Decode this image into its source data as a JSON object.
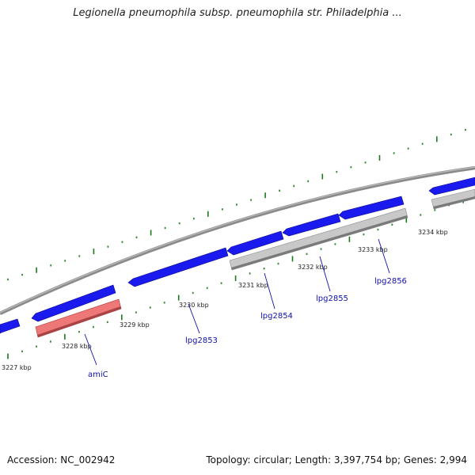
{
  "title": "Legionella pneumophila subsp. pneumophila str. Philadelphia ...",
  "footer": {
    "accession": "Accession: NC_002942",
    "summary": "Topology: circular; Length: 3,397,754 bp; Genes: 2,994"
  },
  "colors": {
    "forward_gene": "#1a1aee",
    "reverse_gene_rna": "#ee7777",
    "reverse_gene_other": "#c8c8c8",
    "backbone": "#8a8a8a",
    "tick_major": "#1a7a1a",
    "tick_minor": "#2e8b2e",
    "label_text": "#1010aa"
  },
  "scale": {
    "ticks": [
      "3227 kbp",
      "3228 kbp",
      "3229 kbp",
      "3230 kbp",
      "3231 kbp",
      "3232 kbp",
      "3233 kbp",
      "3234 kbp"
    ]
  },
  "genes": [
    {
      "label": "amiC",
      "strand": "reverse",
      "color_key": "reverse_gene_rna"
    },
    {
      "label": "lpg2853",
      "strand": "forward",
      "color_key": "forward_gene"
    },
    {
      "label": "lpg2854",
      "strand": "forward",
      "color_key": "forward_gene"
    },
    {
      "label": "lpg2855",
      "strand": "forward",
      "color_key": "forward_gene"
    },
    {
      "label": "lpg2856",
      "strand": "forward",
      "color_key": "forward_gene"
    }
  ]
}
